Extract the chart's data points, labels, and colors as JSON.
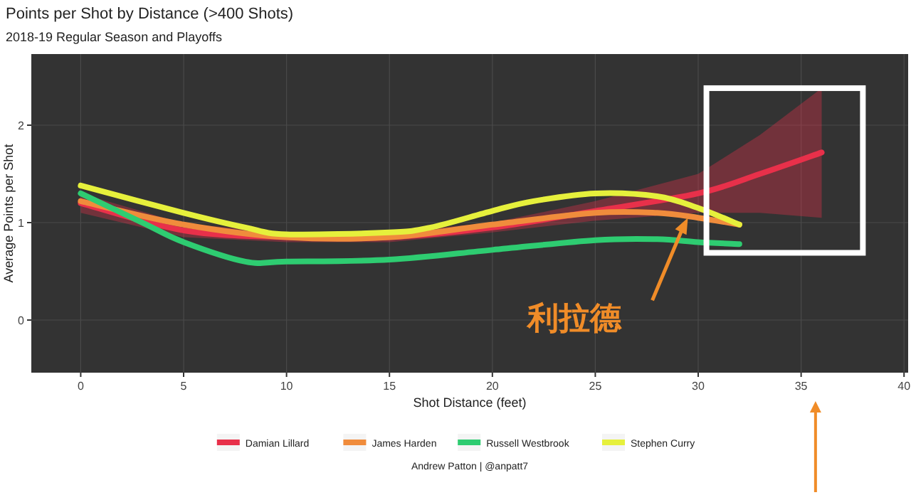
{
  "chart_data": {
    "type": "line",
    "title": "Points per Shot by Distance (>400 Shots)",
    "subtitle": "2018-19 Regular Season and Playoffs",
    "xlabel": "Shot Distance (feet)",
    "ylabel": "Average Points per Shot",
    "xlim": [
      -2.4,
      40.2
    ],
    "ylim": [
      -0.54,
      2.73
    ],
    "xticks": [
      0,
      5,
      10,
      15,
      20,
      25,
      30,
      35,
      40
    ],
    "yticks": [
      0,
      1,
      2
    ],
    "grid": true,
    "legend": "bottom",
    "series": [
      {
        "name": "Damian Lillard",
        "color": "#e8304a",
        "x": [
          0,
          5,
          10,
          15,
          20,
          25,
          30,
          33,
          36
        ],
        "values": [
          1.2,
          0.92,
          0.85,
          0.85,
          0.95,
          1.12,
          1.3,
          1.5,
          1.72
        ],
        "lower": [
          1.1,
          0.85,
          0.8,
          0.8,
          0.9,
          1.02,
          1.1,
          1.1,
          1.05
        ],
        "upper": [
          1.3,
          0.99,
          0.9,
          0.9,
          1.0,
          1.22,
          1.5,
          1.9,
          2.38
        ]
      },
      {
        "name": "James Harden",
        "color": "#f08c3c",
        "x": [
          0,
          5,
          10,
          15,
          20,
          25,
          28,
          30,
          32
        ],
        "values": [
          1.22,
          0.98,
          0.85,
          0.85,
          0.98,
          1.1,
          1.1,
          1.05,
          0.98
        ]
      },
      {
        "name": "Russell Westbrook",
        "color": "#2ecc71",
        "x": [
          0,
          3,
          5,
          8,
          10,
          15,
          20,
          25,
          28,
          30,
          32
        ],
        "values": [
          1.3,
          1.0,
          0.8,
          0.6,
          0.6,
          0.62,
          0.72,
          0.82,
          0.83,
          0.8,
          0.78
        ]
      },
      {
        "name": "Stephen Curry",
        "color": "#e6f03c",
        "x": [
          0,
          5,
          8,
          10,
          15,
          17,
          20,
          22,
          25,
          28,
          30,
          32
        ],
        "values": [
          1.38,
          1.1,
          0.95,
          0.88,
          0.9,
          0.95,
          1.12,
          1.22,
          1.3,
          1.27,
          1.15,
          0.98
        ]
      }
    ],
    "annotations": [
      {
        "text": "利拉德",
        "x": 29.5,
        "y": 1.05
      },
      "Andrew Patton | @anpatt7"
    ]
  }
}
